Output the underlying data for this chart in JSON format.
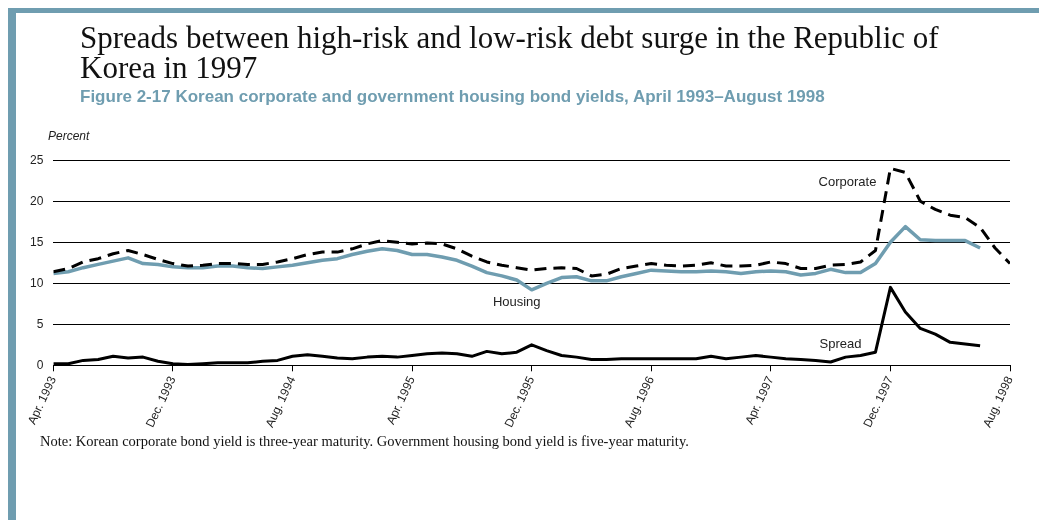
{
  "chart_data": {
    "type": "line",
    "title": "Spreads between high-risk and low-risk debt surge in the Republic of Korea in 1997",
    "subtitle": "Figure 2-17 Korean corporate and government housing bond yields, April 1993–August 1998",
    "ylabel": "Percent",
    "annotations": [
      "Note: Korean corporate bond yield is three-year maturity. Government housing bond yield is five-year maturity."
    ],
    "x": [
      "1993-04",
      "1993-05",
      "1993-06",
      "1993-07",
      "1993-08",
      "1993-09",
      "1993-10",
      "1993-11",
      "1993-12",
      "1994-01",
      "1994-02",
      "1994-03",
      "1994-04",
      "1994-05",
      "1994-06",
      "1994-07",
      "1994-08",
      "1994-09",
      "1994-10",
      "1994-11",
      "1994-12",
      "1995-01",
      "1995-02",
      "1995-03",
      "1995-04",
      "1995-05",
      "1995-06",
      "1995-07",
      "1995-08",
      "1995-09",
      "1995-10",
      "1995-11",
      "1995-12",
      "1996-01",
      "1996-02",
      "1996-03",
      "1996-04",
      "1996-05",
      "1996-06",
      "1996-07",
      "1996-08",
      "1996-09",
      "1996-10",
      "1996-11",
      "1996-12",
      "1997-01",
      "1997-02",
      "1997-03",
      "1997-04",
      "1997-05",
      "1997-06",
      "1997-07",
      "1997-08",
      "1997-09",
      "1997-10",
      "1997-11",
      "1997-12",
      "1998-01",
      "1998-02",
      "1998-03",
      "1998-04",
      "1998-05",
      "1998-06",
      "1998-07",
      "1998-08"
    ],
    "series": [
      {
        "name": "Corporate",
        "color": "#000000",
        "line_style": "dashed",
        "values": [
          11.4,
          11.8,
          12.6,
          13.0,
          13.6,
          14.0,
          13.5,
          12.9,
          12.4,
          12.1,
          12.2,
          12.4,
          12.4,
          12.3,
          12.3,
          12.6,
          13.0,
          13.5,
          13.8,
          13.8,
          14.2,
          14.8,
          15.2,
          15.0,
          14.8,
          14.9,
          14.8,
          14.2,
          13.3,
          12.6,
          12.2,
          11.9,
          11.6,
          11.8,
          11.9,
          11.8,
          10.9,
          11.1,
          11.8,
          12.1,
          12.4,
          12.2,
          12.1,
          12.2,
          12.5,
          12.1,
          12.1,
          12.2,
          12.6,
          12.4,
          11.8,
          11.8,
          12.2,
          12.3,
          12.6,
          14.0,
          24.0,
          23.5,
          20.0,
          19.0,
          18.3,
          18.0,
          16.8,
          14.3,
          12.4
        ]
      },
      {
        "name": "Housing",
        "color": "#6f9db0",
        "line_style": "solid",
        "values": [
          11.2,
          11.4,
          11.9,
          12.3,
          12.7,
          13.1,
          12.4,
          12.3,
          12.0,
          11.9,
          11.9,
          12.1,
          12.1,
          11.9,
          11.8,
          12.0,
          12.2,
          12.5,
          12.8,
          13.0,
          13.5,
          13.9,
          14.2,
          14.0,
          13.5,
          13.5,
          13.2,
          12.8,
          12.1,
          11.3,
          10.9,
          10.4,
          9.2,
          10.0,
          10.7,
          10.8,
          10.3,
          10.3,
          10.8,
          11.2,
          11.6,
          11.5,
          11.4,
          11.4,
          11.5,
          11.4,
          11.2,
          11.4,
          11.5,
          11.4,
          11.0,
          11.2,
          11.7,
          11.3,
          11.3,
          12.4,
          15.0,
          16.9,
          15.3,
          15.2,
          15.2,
          15.2,
          14.3,
          null,
          null
        ]
      },
      {
        "name": "Spread",
        "color": "#000000",
        "line_style": "solid",
        "values": [
          0.2,
          0.2,
          0.6,
          0.7,
          1.1,
          0.9,
          1.0,
          0.5,
          0.2,
          0.1,
          0.2,
          0.3,
          0.3,
          0.3,
          0.5,
          0.6,
          1.1,
          1.3,
          1.1,
          0.9,
          0.8,
          1.0,
          1.1,
          1.0,
          1.2,
          1.4,
          1.5,
          1.4,
          1.1,
          1.7,
          1.4,
          1.6,
          2.5,
          1.8,
          1.2,
          1.0,
          0.7,
          0.7,
          0.8,
          0.8,
          0.8,
          0.8,
          0.8,
          0.8,
          1.1,
          0.8,
          1.0,
          1.2,
          1.0,
          0.8,
          0.7,
          0.6,
          0.4,
          1.0,
          1.2,
          1.6,
          9.5,
          6.5,
          4.5,
          3.8,
          2.8,
          2.6,
          2.4,
          null,
          null
        ]
      }
    ],
    "xlim": [
      "1993-04",
      "1998-08"
    ],
    "xticks": [
      {
        "value": "1993-04",
        "label": "Apr. 1993"
      },
      {
        "value": "1993-12",
        "label": "Dec. 1993"
      },
      {
        "value": "1994-08",
        "label": "Aug. 1994"
      },
      {
        "value": "1995-04",
        "label": "Apr. 1995"
      },
      {
        "value": "1995-12",
        "label": "Dec. 1995"
      },
      {
        "value": "1996-08",
        "label": "Aug. 1996"
      },
      {
        "value": "1997-04",
        "label": "Apr. 1997"
      },
      {
        "value": "1997-12",
        "label": "Dec. 1997"
      },
      {
        "value": "1998-08",
        "label": "Aug. 1998"
      }
    ],
    "ylim": [
      0,
      25
    ],
    "yticks": [
      0,
      5,
      10,
      15,
      20,
      25
    ],
    "grid": "y",
    "legend": false,
    "marker": "none"
  }
}
